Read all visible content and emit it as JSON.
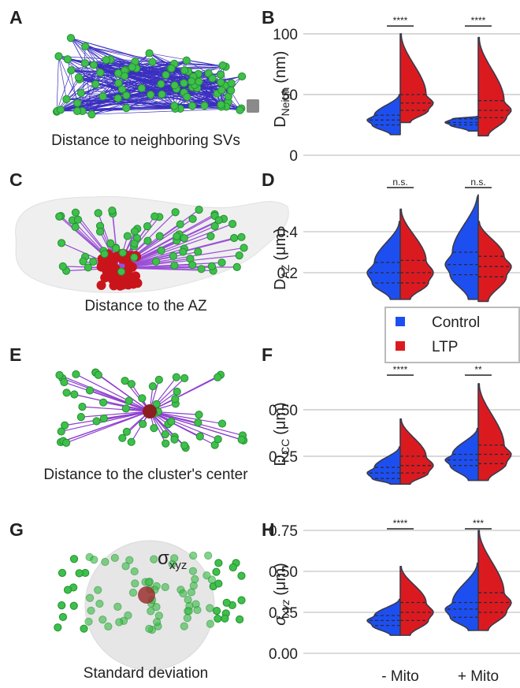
{
  "panels": [
    {
      "letter": "A",
      "caption": "Distance to neighboring SVs"
    },
    {
      "letter": "C",
      "caption": "Distance to the AZ"
    },
    {
      "letter": "E",
      "caption": "Distance to the cluster's center"
    },
    {
      "letter": "G",
      "caption": "Standard deviation",
      "symbol": "σ",
      "symbol_sub": "xyz"
    }
  ],
  "legend": [
    {
      "name": "Control",
      "color": "#1d4ff0"
    },
    {
      "name": "LTP",
      "color": "#db1a20"
    }
  ],
  "chart_data": [
    {
      "type": "violin",
      "letter": "B",
      "y_label": "D",
      "y_label_sub": "Neigh",
      "y_label_unit": "(nm)",
      "ylim": [
        0,
        108
      ],
      "yticks": [
        0,
        50,
        100
      ],
      "grid": true,
      "significance": [
        "****",
        "****"
      ],
      "series": [
        {
          "color": "#1d4ff0",
          "min": [
            17,
            20
          ],
          "q1": [
            25,
            25
          ],
          "median": [
            29,
            27
          ],
          "q3": [
            33,
            30
          ],
          "max": [
            50,
            32
          ]
        },
        {
          "color": "#db1a20",
          "min": [
            27,
            16
          ],
          "q1": [
            37,
            31
          ],
          "median": [
            43,
            37
          ],
          "q3": [
            50,
            45
          ],
          "max": [
            100,
            97
          ]
        }
      ]
    },
    {
      "type": "violin",
      "letter": "D",
      "y_label": "D",
      "y_label_sub": "AZ",
      "y_label_unit": "(μm)",
      "ylim": [
        0.03,
        0.57
      ],
      "yticks": [
        0.2,
        0.4
      ],
      "grid": true,
      "significance": [
        "n.s.",
        "n.s."
      ],
      "series": [
        {
          "color": "#1d4ff0",
          "min": [
            0.07,
            0.07
          ],
          "q1": [
            0.15,
            0.19
          ],
          "median": [
            0.2,
            0.24
          ],
          "q3": [
            0.25,
            0.3
          ],
          "max": [
            0.45,
            0.58
          ]
        },
        {
          "color": "#db1a20",
          "min": [
            0.07,
            0.06
          ],
          "q1": [
            0.15,
            0.18
          ],
          "median": [
            0.2,
            0.23
          ],
          "q3": [
            0.26,
            0.28
          ],
          "max": [
            0.51,
            0.45
          ]
        }
      ]
    },
    {
      "type": "violin",
      "letter": "F",
      "y_label": "D",
      "y_label_sub": "CC",
      "y_label_unit": "(μm)",
      "ylim": [
        0.08,
        0.72
      ],
      "yticks": [
        0.25,
        {
          "value": 0.5,
          "label": "0.50"
        }
      ],
      "grid": true,
      "significance": [
        "****",
        "**"
      ],
      "series": [
        {
          "color": "#1d4ff0",
          "min": [
            0.1,
            0.12
          ],
          "q1": [
            0.13,
            0.2
          ],
          "median": [
            0.16,
            0.23
          ],
          "q3": [
            0.19,
            0.26
          ],
          "max": [
            0.3,
            0.4
          ]
        },
        {
          "color": "#db1a20",
          "min": [
            0.1,
            0.12
          ],
          "q1": [
            0.16,
            0.21
          ],
          "median": [
            0.2,
            0.26
          ],
          "q3": [
            0.25,
            0.31
          ],
          "max": [
            0.45,
            0.64
          ]
        }
      ]
    },
    {
      "type": "violin",
      "letter": "H",
      "y_label": "σ",
      "y_label_sub": "xyz",
      "y_label_unit": "(μm)",
      "ylim": [
        0,
        0.8
      ],
      "yticks": [
        {
          "value": 0,
          "label": "0.00"
        },
        0.25,
        {
          "value": 0.5,
          "label": "0.50"
        },
        0.75
      ],
      "grid": true,
      "significance": [
        "****",
        "***"
      ],
      "categories": [
        "- Mito",
        "+ Mito"
      ],
      "series": [
        {
          "color": "#1d4ff0",
          "min": [
            0.11,
            0.14
          ],
          "q1": [
            0.17,
            0.22
          ],
          "median": [
            0.2,
            0.27
          ],
          "q3": [
            0.23,
            0.31
          ],
          "max": [
            0.33,
            0.55
          ]
        },
        {
          "color": "#db1a20",
          "min": [
            0.11,
            0.14
          ],
          "q1": [
            0.2,
            0.25
          ],
          "median": [
            0.25,
            0.31
          ],
          "q3": [
            0.31,
            0.37
          ],
          "max": [
            0.53,
            0.75
          ]
        }
      ]
    }
  ]
}
